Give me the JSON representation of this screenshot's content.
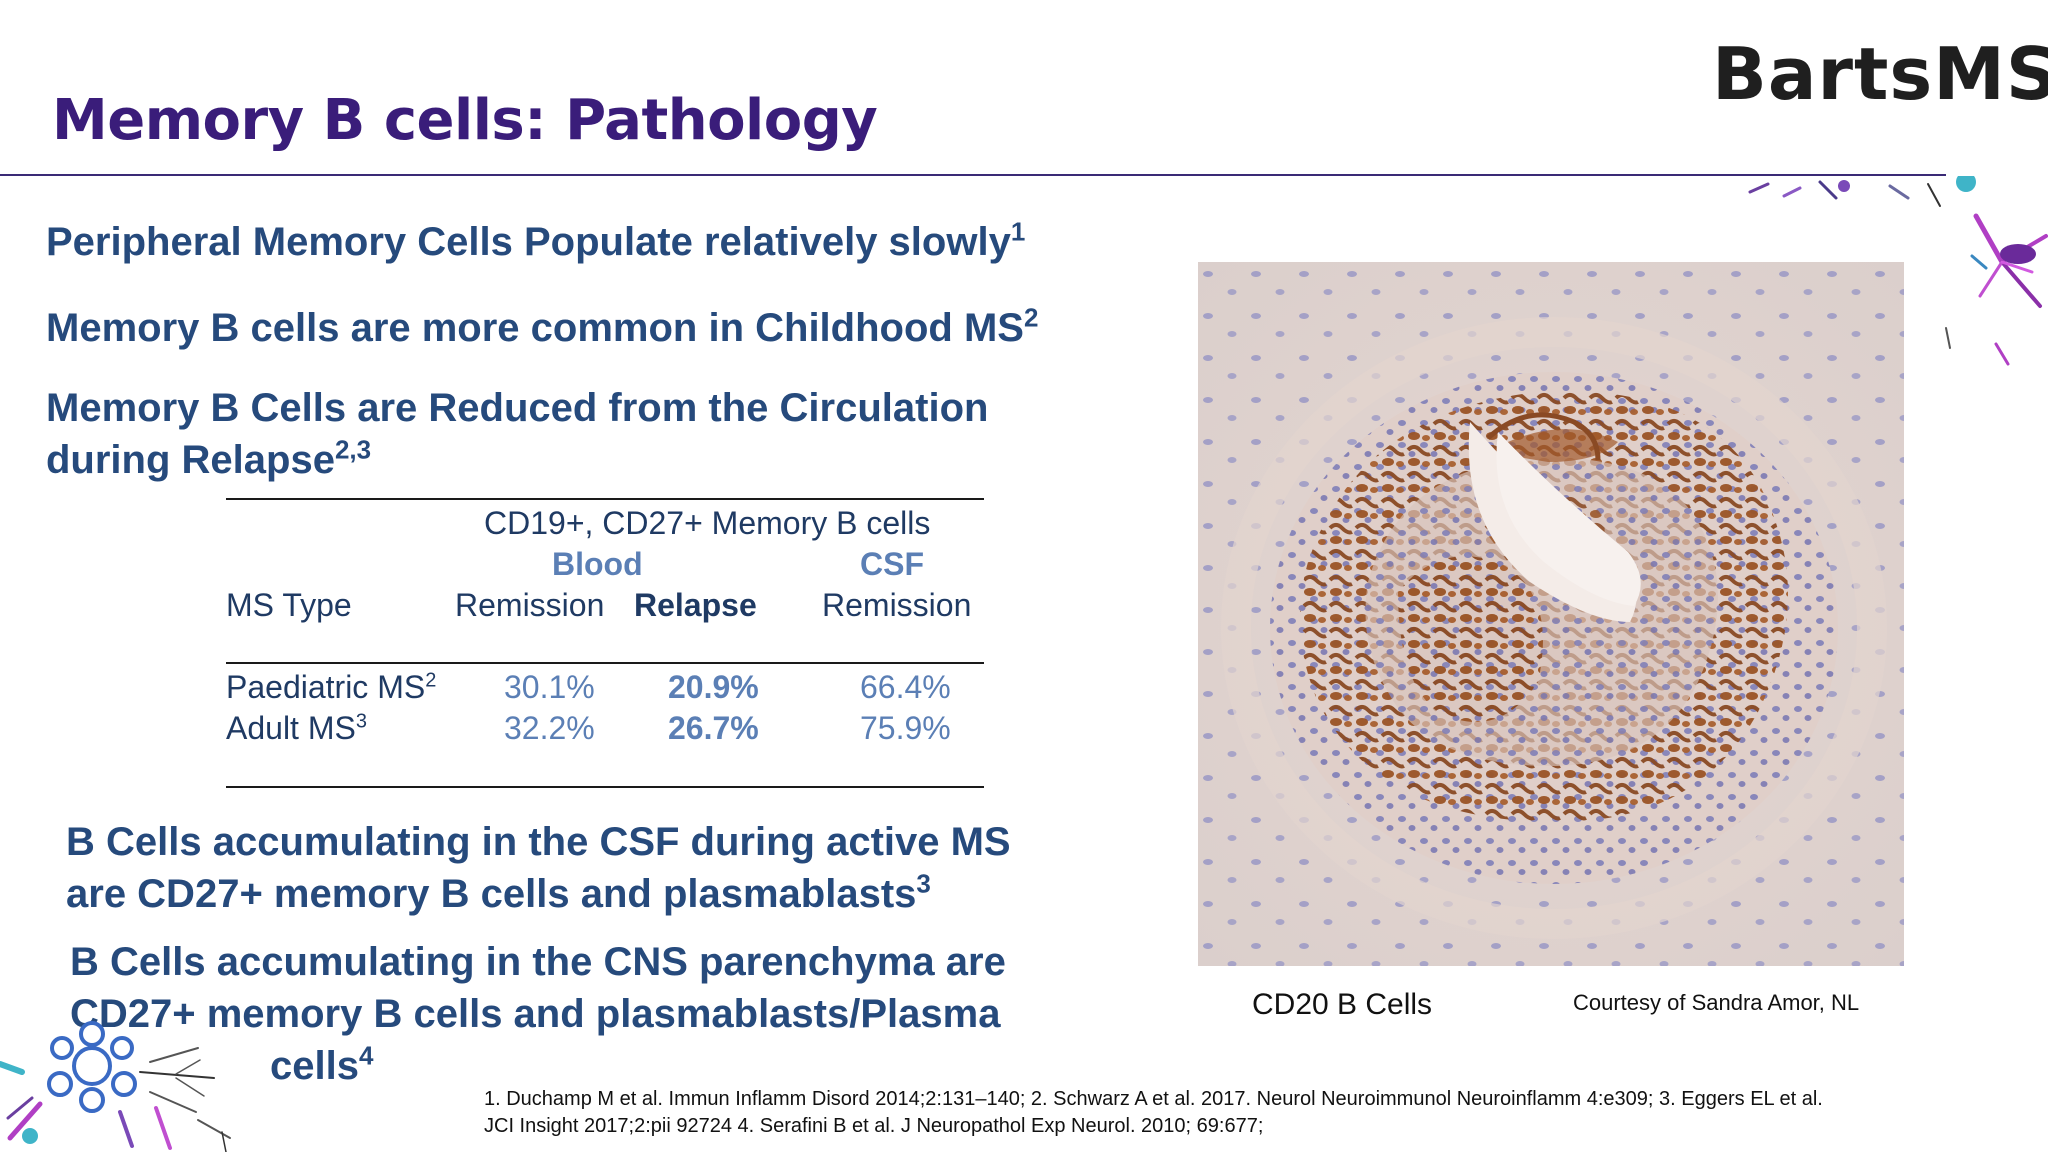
{
  "slide": {
    "title": "Memory B cells: Pathology",
    "logo": "BartsMS"
  },
  "points": [
    {
      "text": "Peripheral Memory Cells Populate relatively slowly",
      "sup": "1"
    },
    {
      "text": "Memory B cells are more common in Childhood MS",
      "sup": "2"
    },
    {
      "line1": "Memory B Cells are Reduced from the Circulation",
      "line2": "during Relapse",
      "sup": "2,3"
    }
  ],
  "table": {
    "group_header": "CD19+, CD27+ Memory B cells",
    "blood_header": "Blood",
    "csf_header": "CSF",
    "col_type": "MS Type",
    "col_blood_remission": "Remission",
    "col_blood_relapse": "Relapse",
    "col_csf_remission": "Remission",
    "rows": [
      {
        "type": "Paediatric MS",
        "sup": "2",
        "blood_remission": "30.1%",
        "blood_relapse": "20.9%",
        "csf_remission": "66.4%"
      },
      {
        "type": "Adult MS",
        "sup": "3",
        "blood_remission": "32.2%",
        "blood_relapse": "26.7%",
        "csf_remission": "75.9%"
      }
    ]
  },
  "lower_points": [
    {
      "line1": "B Cells accumulating in the CSF during active MS",
      "line2": "are CD27+ memory B cells and plasmablasts",
      "sup": "3"
    },
    {
      "line1": "B Cells accumulating in the CNS parenchyma are",
      "line2": "CD27+ memory B cells and plasmablasts/Plasma",
      "line3": "cells",
      "sup": "4"
    }
  ],
  "image": {
    "caption": "CD20 B Cells",
    "credit": "Courtesy of Sandra Amor, NL"
  },
  "references": {
    "line1": "1. Duchamp M et al. Immun Inflamm Disord 2014;2:131–140; 2. Schwarz A et al. 2017. Neurol Neuroimmunol Neuroinflamm 4:e309; 3. Eggers EL et al.",
    "line2": "JCI Insight 2017;2:pii 92724 4. Serafini B et al. J Neuropathol Exp Neurol. 2010; 69:677;"
  },
  "colors": {
    "title": "#3a1d7a",
    "body_text": "#264a7c",
    "table_blue": "#5b7fb5",
    "stain_brown": "#8a4a24",
    "nuclei_blue": "#6f72b0"
  }
}
